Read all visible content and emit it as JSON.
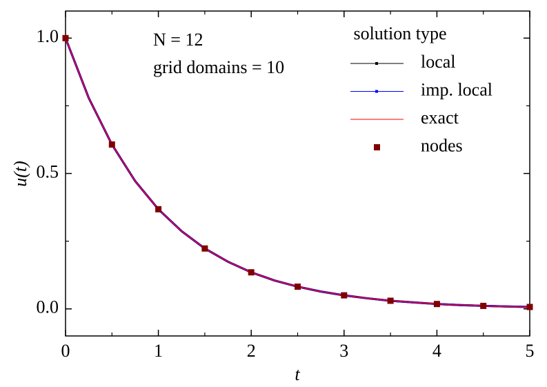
{
  "chart_data": {
    "type": "line",
    "annotations": [
      "N = 12",
      "grid domains = 10"
    ],
    "xlabel": "t",
    "ylabel": "u(t)",
    "legend_title": "solution type",
    "legend": "upper right",
    "xlim": [
      0,
      5
    ],
    "xticks": [
      0,
      1,
      2,
      3,
      4,
      5
    ],
    "ylim": [
      -0.1,
      1.1
    ],
    "yticks": [
      {
        "value": 0,
        "label": "0.0"
      },
      {
        "value": 0.5,
        "label": "0.5"
      },
      {
        "value": 1,
        "label": "1.0"
      }
    ],
    "series": [
      {
        "name": "local",
        "color": "#000000",
        "mode": "line",
        "x": [
          0,
          0.25,
          0.5,
          0.75,
          1,
          1.25,
          1.5,
          1.75,
          2,
          2.25,
          2.5,
          2.75,
          3,
          3.25,
          3.5,
          3.75,
          4,
          4.25,
          4.5,
          4.75,
          5
        ],
        "values": [
          1,
          0.779,
          0.607,
          0.472,
          0.368,
          0.287,
          0.223,
          0.174,
          0.135,
          0.105,
          0.082,
          0.064,
          0.05,
          0.039,
          0.03,
          0.024,
          0.018,
          0.014,
          0.011,
          0.009,
          0.007
        ]
      },
      {
        "name": "imp. local",
        "color": "#0000ff",
        "mode": "line",
        "x": [
          0,
          0.25,
          0.5,
          0.75,
          1,
          1.25,
          1.5,
          1.75,
          2,
          2.25,
          2.5,
          2.75,
          3,
          3.25,
          3.5,
          3.75,
          4,
          4.25,
          4.5,
          4.75,
          5
        ],
        "values": [
          1,
          0.779,
          0.607,
          0.472,
          0.368,
          0.287,
          0.223,
          0.174,
          0.135,
          0.105,
          0.082,
          0.064,
          0.05,
          0.039,
          0.03,
          0.024,
          0.018,
          0.014,
          0.011,
          0.009,
          0.007
        ]
      },
      {
        "name": "exact",
        "color": "#ff0000",
        "mode": "line",
        "x": [
          0,
          0.25,
          0.5,
          0.75,
          1,
          1.25,
          1.5,
          1.75,
          2,
          2.25,
          2.5,
          2.75,
          3,
          3.25,
          3.5,
          3.75,
          4,
          4.25,
          4.5,
          4.75,
          5
        ],
        "values": [
          1,
          0.779,
          0.607,
          0.472,
          0.368,
          0.287,
          0.223,
          0.174,
          0.135,
          0.105,
          0.082,
          0.064,
          0.05,
          0.039,
          0.03,
          0.024,
          0.018,
          0.014,
          0.011,
          0.009,
          0.007
        ]
      },
      {
        "name": "nodes",
        "color": "#800000",
        "mode": "markers",
        "x": [
          0,
          0.5,
          1,
          1.5,
          2,
          2.5,
          3,
          3.5,
          4,
          4.5,
          5
        ],
        "values": [
          1,
          0.607,
          0.368,
          0.223,
          0.135,
          0.082,
          0.05,
          0.03,
          0.018,
          0.011,
          0.007
        ]
      }
    ]
  }
}
